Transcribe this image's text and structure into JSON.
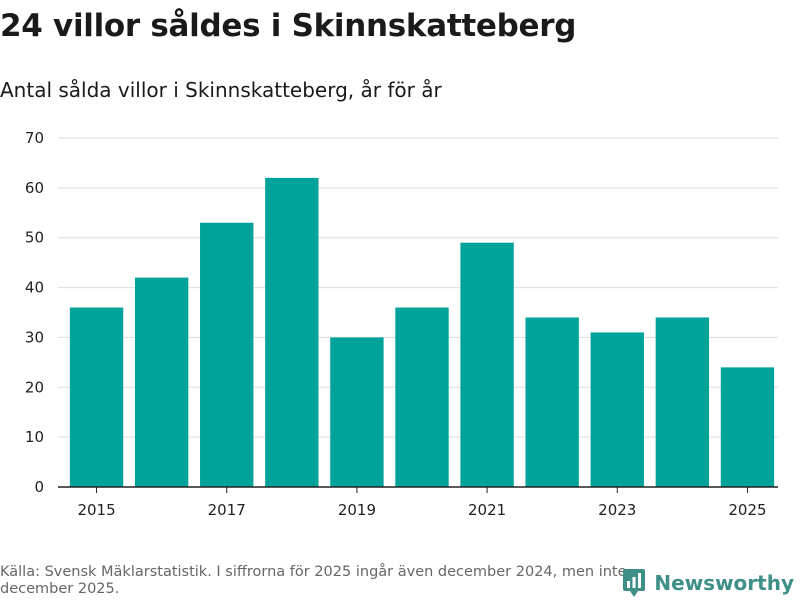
{
  "headline": "24 villor såldes i Skinnskatteberg",
  "subheadline": "Antal sålda villor i Skinnskatteberg, år för år",
  "chart_data": {
    "type": "bar",
    "title": "24 villor såldes i Skinnskatteberg",
    "subtitle": "Antal sålda villor i Skinnskatteberg, år för år",
    "categories": [
      "2015",
      "2016",
      "2017",
      "2018",
      "2019",
      "2020",
      "2021",
      "2022",
      "2023",
      "2024",
      "2025"
    ],
    "values": [
      36,
      42,
      53,
      62,
      30,
      36,
      49,
      34,
      31,
      34,
      24
    ],
    "x_tick_labels": [
      "2015",
      "2017",
      "2019",
      "2021",
      "2023",
      "2025"
    ],
    "y_ticks": [
      0,
      10,
      20,
      30,
      40,
      50,
      60,
      70
    ],
    "ylim": [
      0,
      70
    ],
    "xlabel": "",
    "ylabel": "",
    "grid": true,
    "bar_color": "#00a39a"
  },
  "footer": {
    "source_note": "Källa: Svensk Mäklarstatistik. I siffrorna för 2025 ingår även december 2024, men inte december 2025."
  },
  "brand": {
    "name": "Newsworthy",
    "color": "#3d8f87",
    "icon": "newsworthy-logo-icon"
  }
}
